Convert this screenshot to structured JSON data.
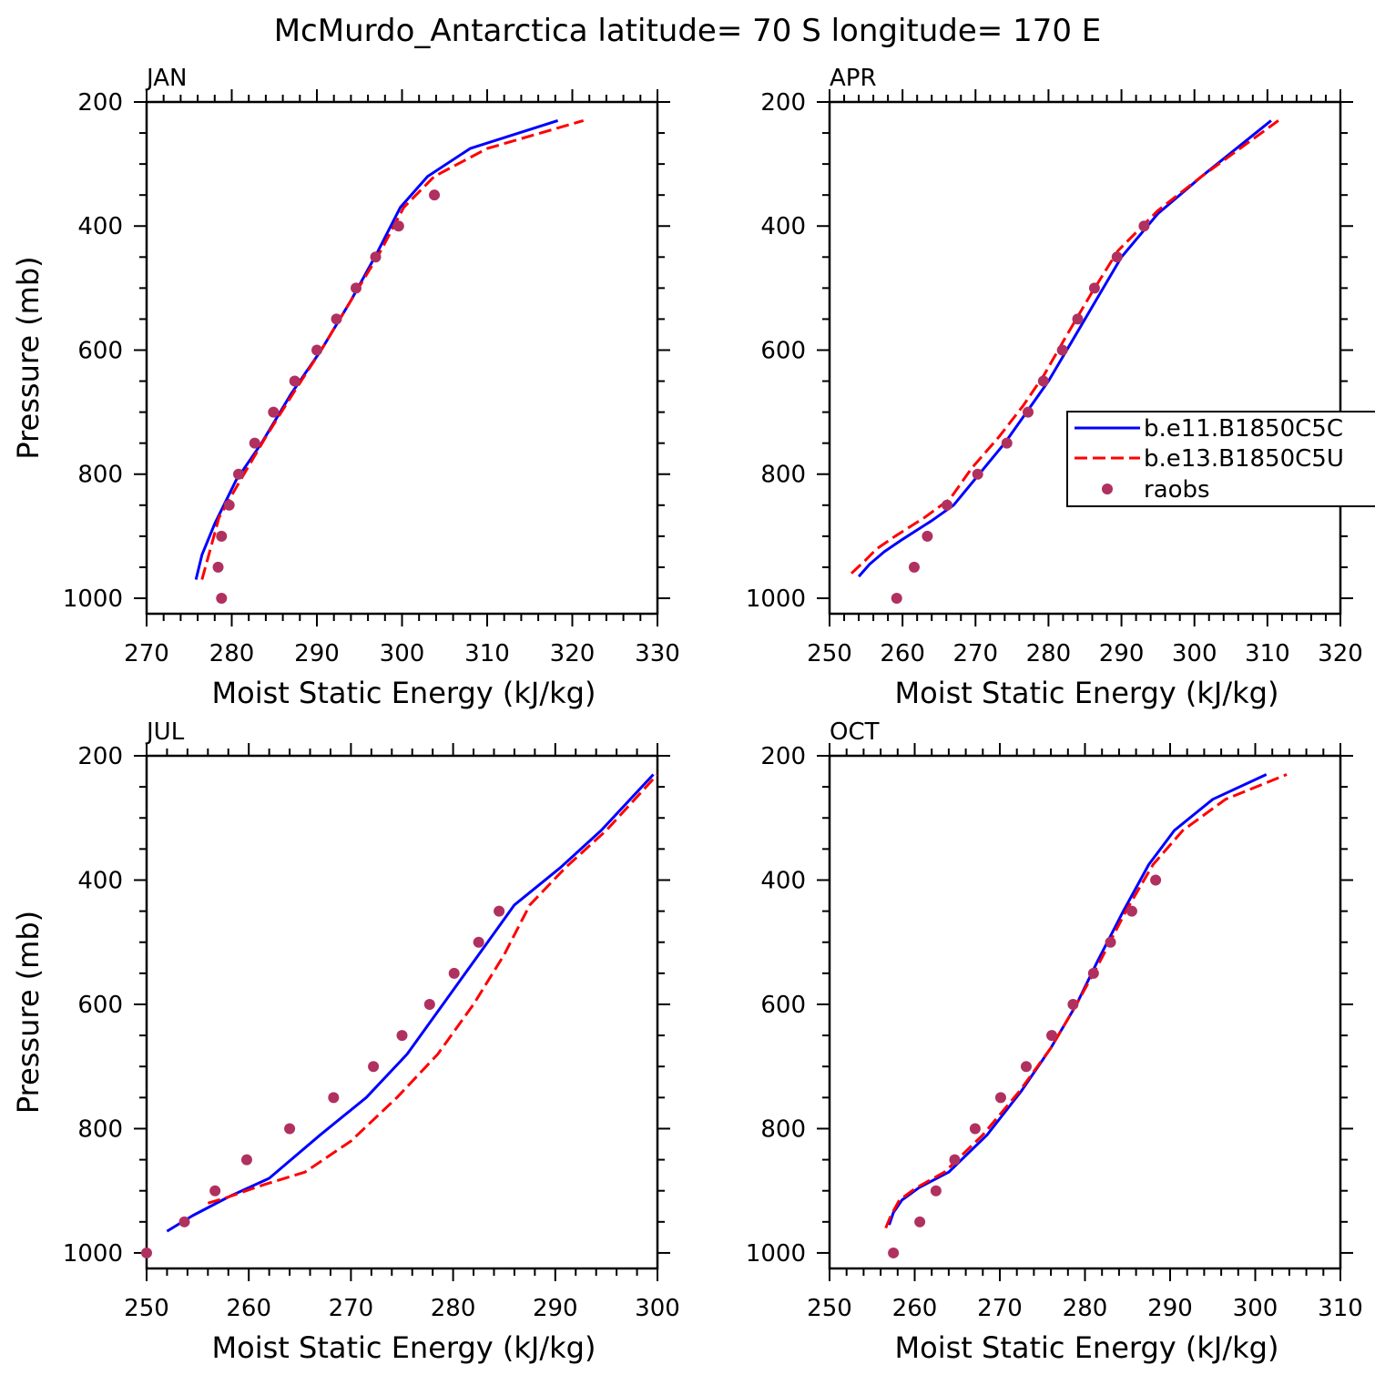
{
  "figure": {
    "title": "McMurdo_Antarctica  latitude= 70 S longitude= 170 E"
  },
  "colors": {
    "series1": "#0000ff",
    "series2": "#ff0000",
    "obs": "#b03060"
  },
  "legend": {
    "placement": "right-middle of APR panel (clipped at figure edge)",
    "entries": [
      "b.e11.B1850C5C",
      "b.e13.B1850C5U",
      "raobs"
    ]
  },
  "chart_data": [
    {
      "type": "line",
      "panel": "JAN",
      "title": "JAN",
      "xlabel": "Moist Static Energy (kJ/kg)",
      "ylabel": "Pressure (mb)",
      "xlim": [
        270,
        330
      ],
      "ylim": [
        1025,
        200
      ],
      "xticks": [
        270,
        280,
        290,
        300,
        310,
        320,
        330
      ],
      "yticks": [
        200,
        400,
        600,
        800,
        1000
      ],
      "series": [
        {
          "name": "b.e11.B1850C5C",
          "style": "solid",
          "x": [
            275.8,
            276.5,
            278,
            280.5,
            283.5,
            287,
            290.5,
            294,
            297,
            299.8,
            303,
            308,
            318.3
          ],
          "y": [
            970,
            930,
            880,
            810,
            750,
            670,
            600,
            520,
            445,
            370,
            320,
            275,
            230
          ]
        },
        {
          "name": "b.e13.B1850C5U",
          "style": "dashed",
          "x": [
            276.5,
            277.3,
            278.5,
            281,
            284,
            287.2,
            290.5,
            294,
            297.3,
            300.2,
            303.8,
            310,
            321.3
          ],
          "y": [
            970,
            930,
            870,
            810,
            740,
            670,
            600,
            520,
            445,
            370,
            320,
            275,
            230
          ]
        },
        {
          "name": "raobs",
          "style": "markers",
          "x": [
            278.8,
            278.4,
            278.8,
            279.7,
            280.8,
            282.7,
            284.9,
            287.4,
            290.0,
            292.3,
            294.6,
            296.9,
            299.6,
            303.8
          ],
          "y": [
            1000,
            950,
            900,
            850,
            800,
            750,
            700,
            650,
            600,
            550,
            500,
            450,
            400,
            350
          ]
        }
      ]
    },
    {
      "type": "line",
      "panel": "APR",
      "title": "APR",
      "xlabel": "Moist Static Energy (kJ/kg)",
      "ylabel": "Pressure (mb)",
      "xlim": [
        250,
        320
      ],
      "ylim": [
        1025,
        200
      ],
      "xticks": [
        250,
        260,
        270,
        280,
        290,
        300,
        310,
        320
      ],
      "yticks": [
        200,
        400,
        600,
        800,
        1000
      ],
      "series": [
        {
          "name": "b.e11.B1850C5C",
          "style": "solid",
          "x": [
            254,
            255.5,
            257.5,
            260,
            264,
            267,
            270.5,
            274,
            277,
            280,
            283,
            286.5,
            290,
            295,
            301,
            310.5
          ],
          "y": [
            965,
            945,
            925,
            905,
            875,
            850,
            800,
            750,
            700,
            650,
            590,
            520,
            450,
            380,
            320,
            230
          ]
        },
        {
          "name": "b.e13.B1850C5U",
          "style": "dashed",
          "x": [
            253,
            254.8,
            256.5,
            259,
            263,
            266.5,
            269.5,
            273.2,
            276.5,
            279.4,
            282.3,
            285.8,
            289.5,
            295,
            301,
            311.5
          ],
          "y": [
            960,
            940,
            920,
            900,
            870,
            840,
            790,
            740,
            690,
            640,
            580,
            510,
            440,
            375,
            320,
            230
          ]
        },
        {
          "name": "raobs",
          "style": "markers",
          "x": [
            259.2,
            261.6,
            263.4,
            266.1,
            270.3,
            274.3,
            277.2,
            279.3,
            281.9,
            284.0,
            286.3,
            289.4,
            293.1
          ],
          "y": [
            1000,
            950,
            900,
            850,
            800,
            750,
            700,
            650,
            600,
            550,
            500,
            450,
            400
          ]
        }
      ]
    },
    {
      "type": "line",
      "panel": "JUL",
      "title": "JUL",
      "xlabel": "Moist Static Energy (kJ/kg)",
      "ylabel": "Pressure (mb)",
      "xlim": [
        250,
        300
      ],
      "ylim": [
        1025,
        200
      ],
      "xticks": [
        250,
        260,
        270,
        280,
        290,
        300
      ],
      "yticks": [
        200,
        400,
        600,
        800,
        1000
      ],
      "series": [
        {
          "name": "b.e11.B1850C5C",
          "style": "solid",
          "x": [
            252,
            254.5,
            258,
            262,
            267,
            271.5,
            275.5,
            279,
            282.5,
            286,
            290.5,
            294.5,
            299.6
          ],
          "y": [
            965,
            940,
            910,
            880,
            810,
            750,
            680,
            600,
            520,
            440,
            380,
            320,
            230
          ]
        },
        {
          "name": "b.e13.B1850C5U",
          "style": "dashed",
          "x": [
            256,
            258,
            261.5,
            265.5,
            270,
            274.5,
            278.5,
            282,
            285,
            287.5,
            291,
            295,
            300
          ],
          "y": [
            920,
            910,
            890,
            870,
            820,
            750,
            680,
            600,
            520,
            440,
            380,
            320,
            230
          ]
        },
        {
          "name": "raobs",
          "style": "markers",
          "x": [
            250.0,
            253.7,
            256.7,
            259.8,
            264.0,
            268.3,
            272.2,
            275.0,
            277.7,
            280.1,
            282.5,
            284.5
          ],
          "y": [
            1000,
            950,
            900,
            850,
            800,
            750,
            700,
            650,
            600,
            550,
            500,
            450
          ]
        }
      ]
    },
    {
      "type": "line",
      "panel": "OCT",
      "title": "OCT",
      "xlabel": "Moist Static Energy (kJ/kg)",
      "ylabel": "Pressure (mb)",
      "xlim": [
        250,
        310
      ],
      "ylim": [
        1025,
        200
      ],
      "xticks": [
        250,
        260,
        270,
        280,
        290,
        300,
        310
      ],
      "yticks": [
        200,
        400,
        600,
        800,
        1000
      ],
      "series": [
        {
          "name": "b.e11.B1850C5C",
          "style": "solid",
          "x": [
            257,
            257.5,
            258.5,
            260.5,
            264,
            268.5,
            272.5,
            276,
            279,
            281.5,
            284.5,
            287.5,
            290.5,
            295,
            301.3
          ],
          "y": [
            955,
            935,
            915,
            895,
            870,
            810,
            740,
            670,
            600,
            530,
            450,
            375,
            320,
            270,
            230
          ]
        },
        {
          "name": "b.e13.B1850C5U",
          "style": "dashed",
          "x": [
            256.6,
            257.2,
            258.2,
            260.2,
            263.5,
            268,
            272.3,
            276,
            279,
            281.8,
            284.8,
            288,
            291.5,
            296.5,
            303.7
          ],
          "y": [
            960,
            940,
            915,
            895,
            870,
            810,
            740,
            670,
            600,
            530,
            450,
            375,
            320,
            270,
            230
          ]
        },
        {
          "name": "raobs",
          "style": "markers",
          "x": [
            257.5,
            260.6,
            262.5,
            264.7,
            267.1,
            270.1,
            273.1,
            276.1,
            278.6,
            281.0,
            283.0,
            285.5,
            288.3
          ],
          "y": [
            1000,
            950,
            900,
            850,
            800,
            750,
            700,
            650,
            600,
            550,
            500,
            450,
            400
          ]
        }
      ]
    }
  ]
}
